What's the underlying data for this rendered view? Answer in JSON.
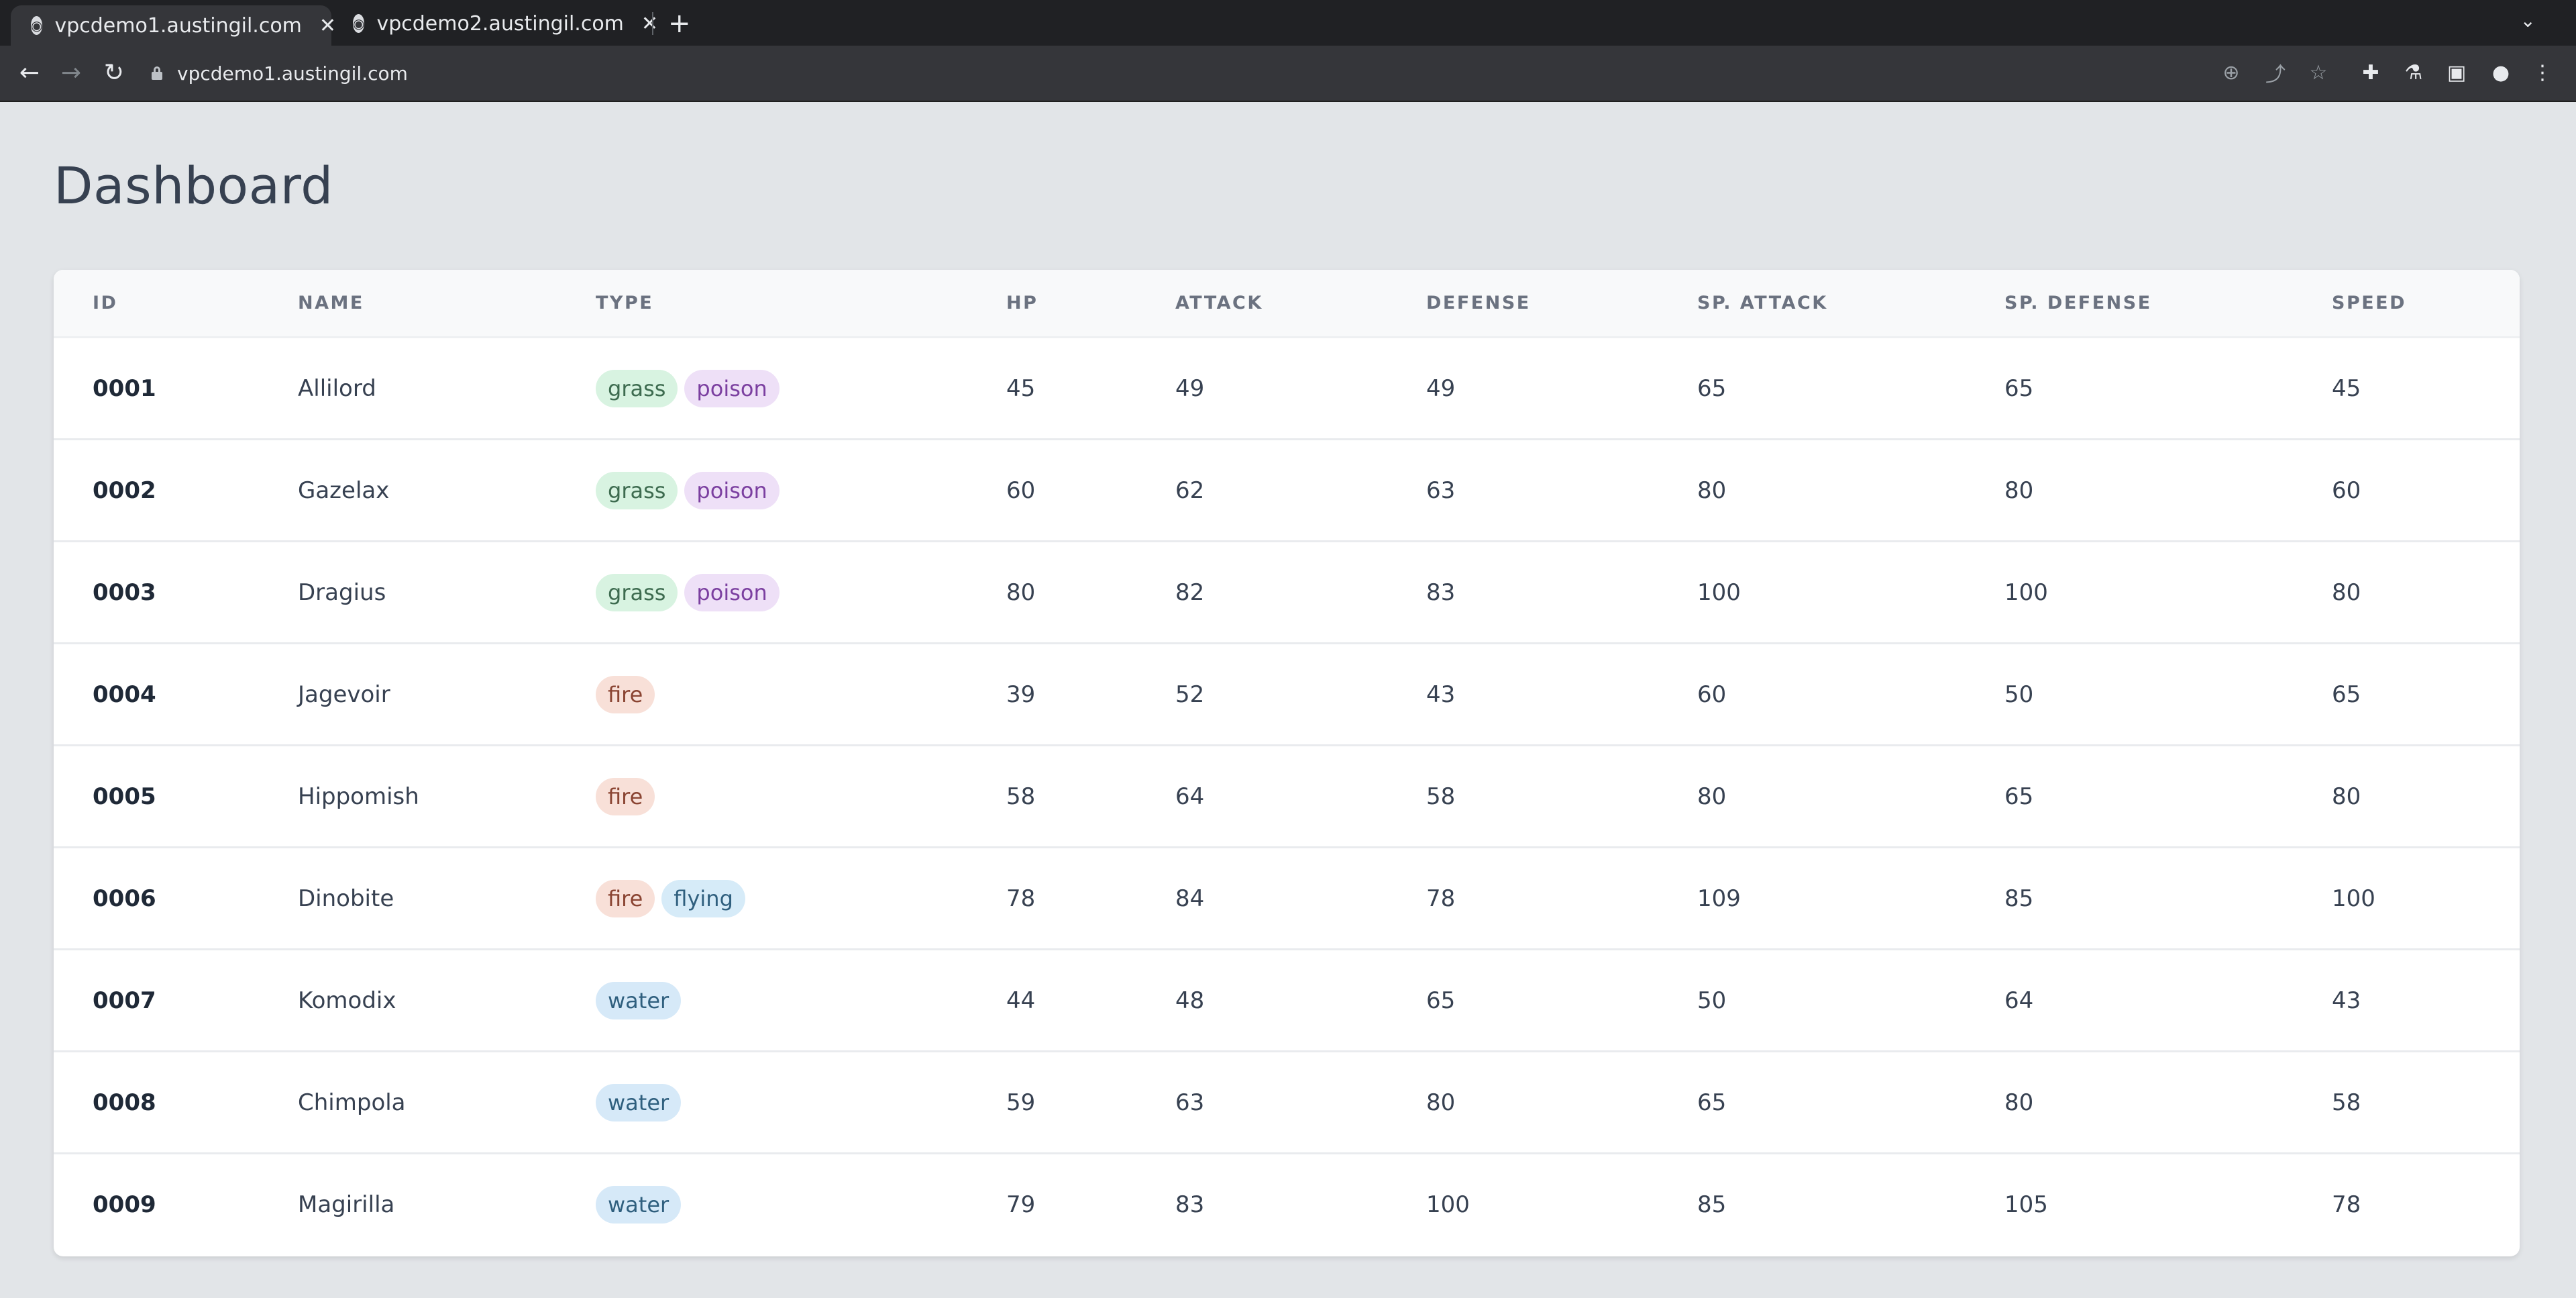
{
  "browser": {
    "tabs": [
      {
        "title": "vpcdemo1.austingil.com",
        "active": true
      },
      {
        "title": "vpcdemo2.austingil.com",
        "active": false
      }
    ],
    "url": "vpcdemo1.austingil.com",
    "icons": {
      "back": "arrow-left-icon",
      "forward": "arrow-right-icon",
      "reload": "reload-icon",
      "zoom": "zoom-icon",
      "share": "share-icon",
      "bookmark": "star-icon",
      "extensions": "puzzle-icon",
      "labs": "flask-icon",
      "sidepanel": "side-panel-icon",
      "profile": "profile-icon",
      "menu": "kebab-menu-icon"
    }
  },
  "page": {
    "title": "Dashboard"
  },
  "table": {
    "columns": [
      "ID",
      "NAME",
      "TYPE",
      "HP",
      "ATTACK",
      "DEFENSE",
      "SP. ATTACK",
      "SP. DEFENSE",
      "SPEED"
    ],
    "type_colors": {
      "grass": {
        "bg": "#d8f3e1",
        "fg": "#3d6b4f"
      },
      "poison": {
        "bg": "#eee0f7",
        "fg": "#7b3fa0"
      },
      "fire": {
        "bg": "#f8e0d8",
        "fg": "#8a4432"
      },
      "flying": {
        "bg": "#d6ebf8",
        "fg": "#2f5f7e"
      },
      "water": {
        "bg": "#d6e9f8",
        "fg": "#2f5f7e"
      }
    },
    "rows": [
      {
        "id": "0001",
        "name": "Allilord",
        "types": [
          "grass",
          "poison"
        ],
        "hp": "45",
        "attack": "49",
        "defense": "49",
        "sp_attack": "65",
        "sp_defense": "65",
        "speed": "45"
      },
      {
        "id": "0002",
        "name": "Gazelax",
        "types": [
          "grass",
          "poison"
        ],
        "hp": "60",
        "attack": "62",
        "defense": "63",
        "sp_attack": "80",
        "sp_defense": "80",
        "speed": "60"
      },
      {
        "id": "0003",
        "name": "Dragius",
        "types": [
          "grass",
          "poison"
        ],
        "hp": "80",
        "attack": "82",
        "defense": "83",
        "sp_attack": "100",
        "sp_defense": "100",
        "speed": "80"
      },
      {
        "id": "0004",
        "name": "Jagevoir",
        "types": [
          "fire"
        ],
        "hp": "39",
        "attack": "52",
        "defense": "43",
        "sp_attack": "60",
        "sp_defense": "50",
        "speed": "65"
      },
      {
        "id": "0005",
        "name": "Hippomish",
        "types": [
          "fire"
        ],
        "hp": "58",
        "attack": "64",
        "defense": "58",
        "sp_attack": "80",
        "sp_defense": "65",
        "speed": "80"
      },
      {
        "id": "0006",
        "name": "Dinobite",
        "types": [
          "fire",
          "flying"
        ],
        "hp": "78",
        "attack": "84",
        "defense": "78",
        "sp_attack": "109",
        "sp_defense": "85",
        "speed": "100"
      },
      {
        "id": "0007",
        "name": "Komodix",
        "types": [
          "water"
        ],
        "hp": "44",
        "attack": "48",
        "defense": "65",
        "sp_attack": "50",
        "sp_defense": "64",
        "speed": "43"
      },
      {
        "id": "0008",
        "name": "Chimpola",
        "types": [
          "water"
        ],
        "hp": "59",
        "attack": "63",
        "defense": "80",
        "sp_attack": "65",
        "sp_defense": "80",
        "speed": "58"
      },
      {
        "id": "0009",
        "name": "Magirilla",
        "types": [
          "water"
        ],
        "hp": "79",
        "attack": "83",
        "defense": "100",
        "sp_attack": "85",
        "sp_defense": "105",
        "speed": "78"
      }
    ]
  }
}
